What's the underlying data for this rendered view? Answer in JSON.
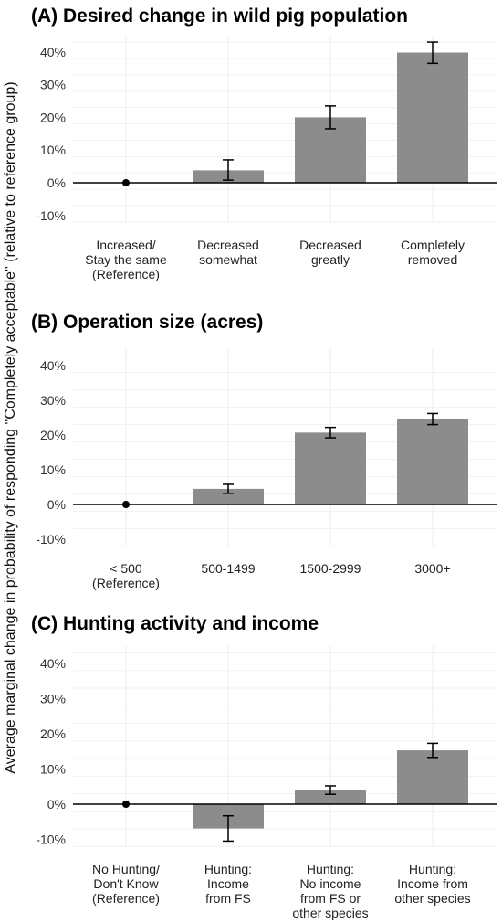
{
  "ylabel": "Average marginal change in probability of responding \"Completely acceptable\" (relative to reference group)",
  "ytick_labels": [
    "-10%",
    "0%",
    "10%",
    "20%",
    "30%",
    "40%"
  ],
  "chart_data": [
    {
      "type": "bar",
      "title": "(A) Desired change in wild pig population",
      "categories": [
        [
          "Increased/",
          "Stay the same",
          "(Reference)"
        ],
        [
          "Decreased",
          "somewhat"
        ],
        [
          "Decreased",
          "greatly"
        ],
        [
          "Completely",
          "removed"
        ]
      ],
      "values": [
        0,
        3.8,
        20.0,
        39.8
      ],
      "error_low": [
        0,
        0.8,
        16.5,
        36.5
      ],
      "error_high": [
        0,
        7.0,
        23.5,
        43.0
      ],
      "reference_index": 0,
      "ylim": [
        -12,
        45
      ],
      "yticks": [
        -10,
        0,
        10,
        20,
        30,
        40
      ]
    },
    {
      "type": "bar",
      "title": "(B) Operation size (acres)",
      "categories": [
        [
          "< 500",
          "(Reference)"
        ],
        [
          "500-1499"
        ],
        [
          "1500-2999"
        ],
        [
          "3000+"
        ]
      ],
      "values": [
        0,
        4.5,
        20.7,
        24.6
      ],
      "error_low": [
        0,
        3.2,
        19.2,
        23.0
      ],
      "error_high": [
        0,
        5.8,
        22.2,
        26.2
      ],
      "reference_index": 0,
      "ylim": [
        -12,
        45
      ],
      "yticks": [
        -10,
        0,
        10,
        20,
        30,
        40
      ]
    },
    {
      "type": "bar",
      "title": "(C) Hunting activity and income",
      "categories": [
        [
          "No Hunting/",
          "Don't Know",
          "(Reference)"
        ],
        [
          "Hunting:",
          "Income",
          "from FS"
        ],
        [
          "Hunting:",
          "No income",
          "from FS or",
          "other species"
        ],
        [
          "Hunting:",
          "Income from",
          "other species"
        ]
      ],
      "values": [
        0,
        -6.9,
        4.0,
        15.3
      ],
      "error_low": [
        0,
        -10.5,
        2.8,
        13.3
      ],
      "error_high": [
        0,
        -3.3,
        5.2,
        17.3
      ],
      "reference_index": 0,
      "ylim": [
        -12,
        45
      ],
      "yticks": [
        -10,
        0,
        10,
        20,
        30,
        40
      ]
    }
  ]
}
